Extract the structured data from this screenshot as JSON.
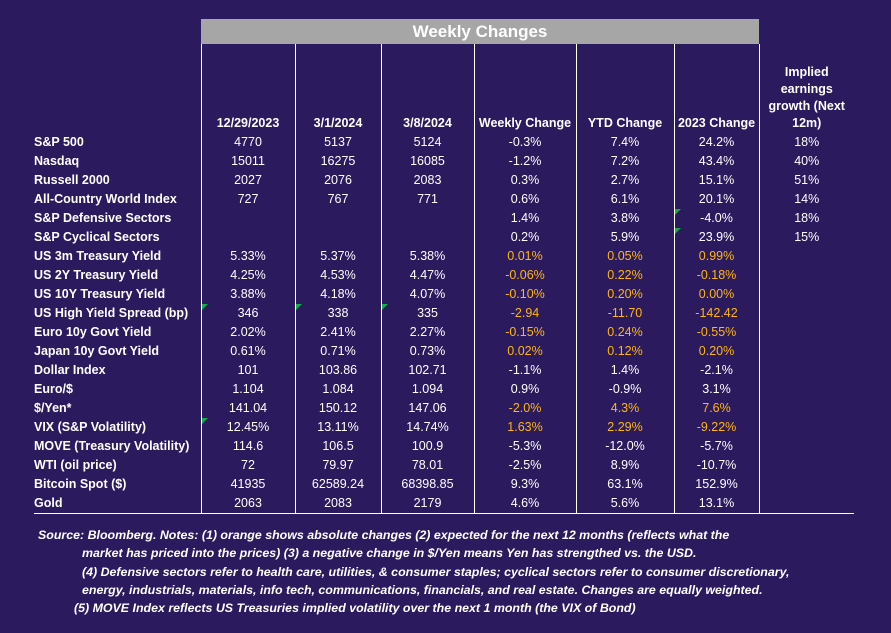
{
  "banner_title": "Weekly Changes",
  "headers": [
    "12/29/2023",
    "3/1/2024",
    "3/8/2024",
    "Weekly Change",
    "YTD Change",
    "2023 Change",
    "Implied earnings growth (Next 12m)"
  ],
  "rows": [
    {
      "label": "S&P 500",
      "values": [
        "4770",
        "5137",
        "5124",
        "-0.3%",
        "7.4%",
        "24.2%",
        "18%"
      ]
    },
    {
      "label": "Nasdaq",
      "values": [
        "15011",
        "16275",
        "16085",
        "-1.2%",
        "7.2%",
        "43.4%",
        "40%"
      ]
    },
    {
      "label": "Russell 2000",
      "values": [
        "2027",
        "2076",
        "2083",
        "0.3%",
        "2.7%",
        "15.1%",
        "51%"
      ]
    },
    {
      "label": "All-Country World Index",
      "values": [
        "727",
        "767",
        "771",
        "0.6%",
        "6.1%",
        "20.1%",
        "14%"
      ]
    },
    {
      "label": "S&P Defensive Sectors",
      "values": [
        "",
        "",
        "",
        "1.4%",
        "3.8%",
        "-4.0%",
        "18%"
      ]
    },
    {
      "label": "S&P Cyclical Sectors",
      "values": [
        "",
        "",
        "",
        "0.2%",
        "5.9%",
        "23.9%",
        "15%"
      ]
    },
    {
      "label": "US 3m Treasury Yield",
      "values": [
        "5.33%",
        "5.37%",
        "5.38%",
        "0.01%",
        "0.05%",
        "0.99%",
        ""
      ]
    },
    {
      "label": "US 2Y Treasury Yield",
      "values": [
        "4.25%",
        "4.53%",
        "4.47%",
        "-0.06%",
        "0.22%",
        "-0.18%",
        ""
      ]
    },
    {
      "label": "US 10Y Treasury Yield",
      "values": [
        "3.88%",
        "4.18%",
        "4.07%",
        "-0.10%",
        "0.20%",
        "0.00%",
        ""
      ]
    },
    {
      "label": "US High Yield Spread (bp)",
      "values": [
        "346",
        "338",
        "335",
        "-2.94",
        "-11.70",
        "-142.42",
        ""
      ]
    },
    {
      "label": "Euro 10y Govt Yield",
      "values": [
        "2.02%",
        "2.41%",
        "2.27%",
        "-0.15%",
        "0.24%",
        "-0.55%",
        ""
      ]
    },
    {
      "label": "Japan 10y Govt Yield",
      "values": [
        "0.61%",
        "0.71%",
        "0.73%",
        "0.02%",
        "0.12%",
        "0.20%",
        ""
      ]
    },
    {
      "label": "Dollar Index",
      "values": [
        "101",
        "103.86",
        "102.71",
        "-1.1%",
        "1.4%",
        "-2.1%",
        ""
      ]
    },
    {
      "label": "Euro/$",
      "values": [
        "1.104",
        "1.084",
        "1.094",
        "0.9%",
        "-0.9%",
        "3.1%",
        ""
      ]
    },
    {
      "label": "$/Yen*",
      "values": [
        "141.04",
        "150.12",
        "147.06",
        "-2.0%",
        "4.3%",
        "7.6%",
        ""
      ]
    },
    {
      "label": "VIX (S&P Volatility)",
      "values": [
        "12.45%",
        "13.11%",
        "14.74%",
        "1.63%",
        "2.29%",
        "-9.22%",
        ""
      ]
    },
    {
      "label": "MOVE (Treasury Volatility)",
      "values": [
        "114.6",
        "106.5",
        "100.9",
        "-5.3%",
        "-12.0%",
        "-5.7%",
        ""
      ]
    },
    {
      "label": "WTI (oil price)",
      "values": [
        "72",
        "79.97",
        "78.01",
        "-2.5%",
        "8.9%",
        "-10.7%",
        ""
      ]
    },
    {
      "label": "Bitcoin Spot ($)",
      "values": [
        "41935",
        "62589.24",
        "68398.85",
        "9.3%",
        "63.1%",
        "152.9%",
        ""
      ]
    },
    {
      "label": "Gold",
      "values": [
        "2063",
        "2083",
        "2179",
        "4.6%",
        "5.6%",
        "13.1%",
        ""
      ]
    }
  ],
  "orange_rows": [
    "US 3m Treasury Yield",
    "US 2Y Treasury Yield",
    "US 10Y Treasury Yield",
    "US High Yield Spread (bp)",
    "Euro 10y Govt Yield",
    "Japan 10y Govt Yield",
    "$/Yen*",
    "VIX (S&P Volatility)"
  ],
  "colors": {
    "background": "#2b1a5e",
    "banner": "#a6a6a6",
    "orange_text": "#ffb612",
    "gridline": "#ffffff",
    "comment_marker": "#1aa84a"
  },
  "notes": [
    "Source: Bloomberg. Notes: (1) orange shows absolute changes (2) expected for the next 12 months (reflects what the",
    "market has priced into the prices) (3) a negative change in $/Yen means Yen has strengthed vs. the USD.",
    "(4) Defensive sectors refer to health care, utilities, & consumer staples; cyclical sectors refer to consumer discretionary,",
    "energy, industrials, materials, info tech, communications, financials, and real estate. Changes are equally weighted.",
    "(5) MOVE Index reflects US Treasuries implied volatility over the next 1 month (the VIX of Bond)"
  ]
}
